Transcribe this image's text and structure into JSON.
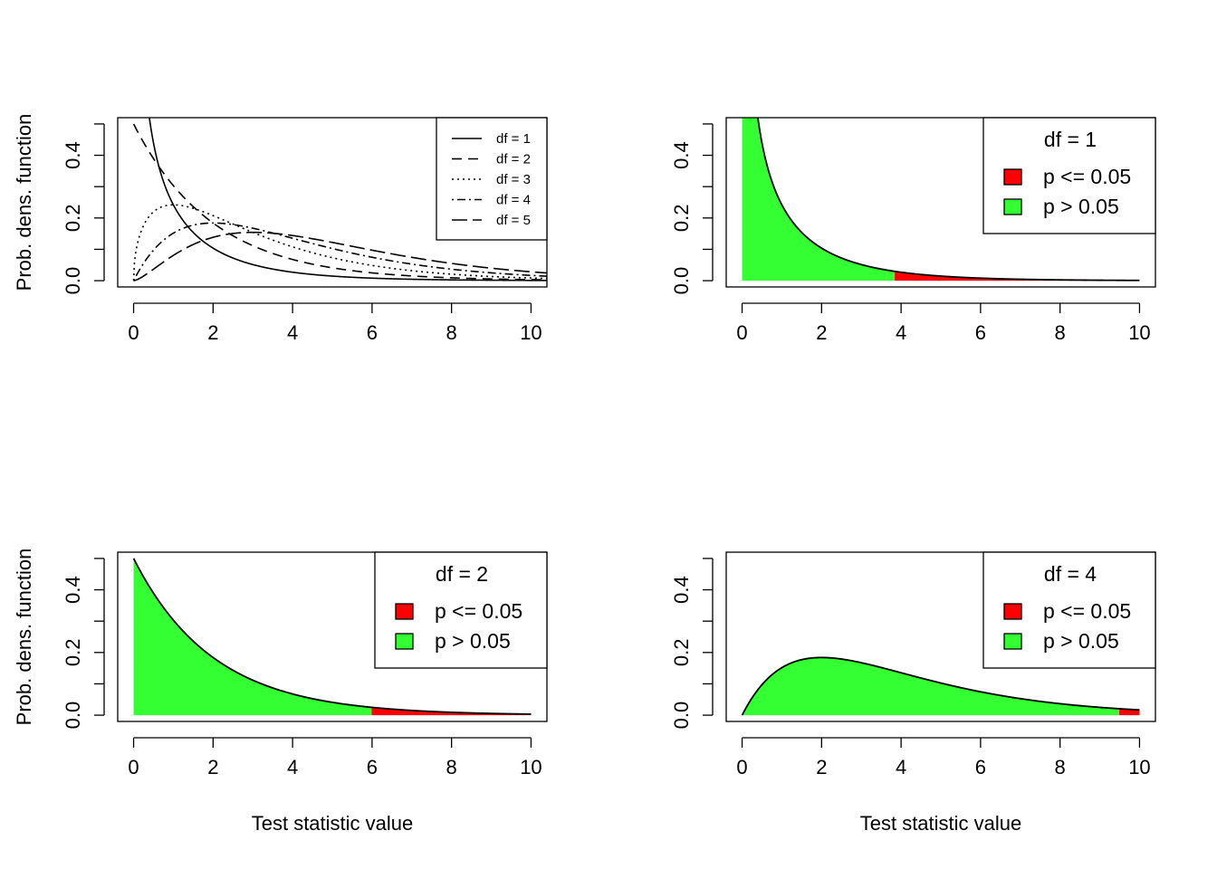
{
  "colors": {
    "reject": "#ff0000",
    "accept": "#33ff33",
    "curve": "#000000",
    "background": "#ffffff"
  },
  "chart_data": [
    {
      "type": "line",
      "distribution": "chi-squared",
      "xlim": [
        0,
        10
      ],
      "ylim": [
        0,
        0.5
      ],
      "xticks": [
        "0",
        "2",
        "4",
        "6",
        "8",
        "10"
      ],
      "yticks": [
        "0.0",
        "0.2",
        "0.4"
      ],
      "xlabel": "",
      "ylabel": "Prob. dens. function",
      "legend_placement": "top-right",
      "series": [
        {
          "name": "df = 1",
          "df": 1,
          "line_style": "solid"
        },
        {
          "name": "df = 2",
          "df": 2,
          "line_style": "dashed"
        },
        {
          "name": "df = 3",
          "df": 3,
          "line_style": "dotted"
        },
        {
          "name": "df = 4",
          "df": 4,
          "line_style": "dotdash"
        },
        {
          "name": "df = 5",
          "df": 5,
          "line_style": "longdash"
        }
      ]
    },
    {
      "type": "area",
      "distribution": "chi-squared",
      "df": 1,
      "critical_value": 3.84,
      "xlim": [
        0,
        10
      ],
      "ylim": [
        0,
        0.5
      ],
      "xticks": [
        "0",
        "2",
        "4",
        "6",
        "8",
        "10"
      ],
      "yticks": [
        "0.0",
        "0.2",
        "0.4"
      ],
      "xlabel": "",
      "ylabel": "",
      "legend_placement": "top-right",
      "legend_title": "df = 1",
      "legend": [
        "p <= 0.05",
        "p > 0.05"
      ]
    },
    {
      "type": "area",
      "distribution": "chi-squared",
      "df": 2,
      "critical_value": 5.99,
      "xlim": [
        0,
        10
      ],
      "ylim": [
        0,
        0.5
      ],
      "xticks": [
        "0",
        "2",
        "4",
        "6",
        "8",
        "10"
      ],
      "yticks": [
        "0.0",
        "0.2",
        "0.4"
      ],
      "xlabel": "Test statistic value",
      "ylabel": "Prob. dens. function",
      "legend_placement": "top-right",
      "legend_title": "df = 2",
      "legend": [
        "p <= 0.05",
        "p > 0.05"
      ]
    },
    {
      "type": "area",
      "distribution": "chi-squared",
      "df": 4,
      "critical_value": 9.49,
      "xlim": [
        0,
        10
      ],
      "ylim": [
        0,
        0.5
      ],
      "xticks": [
        "0",
        "2",
        "4",
        "6",
        "8",
        "10"
      ],
      "yticks": [
        "0.0",
        "0.2",
        "0.4"
      ],
      "xlabel": "Test statistic value",
      "ylabel": "",
      "legend_placement": "top-right",
      "legend_title": "df = 4",
      "legend": [
        "p <= 0.05",
        "p > 0.05"
      ]
    }
  ]
}
